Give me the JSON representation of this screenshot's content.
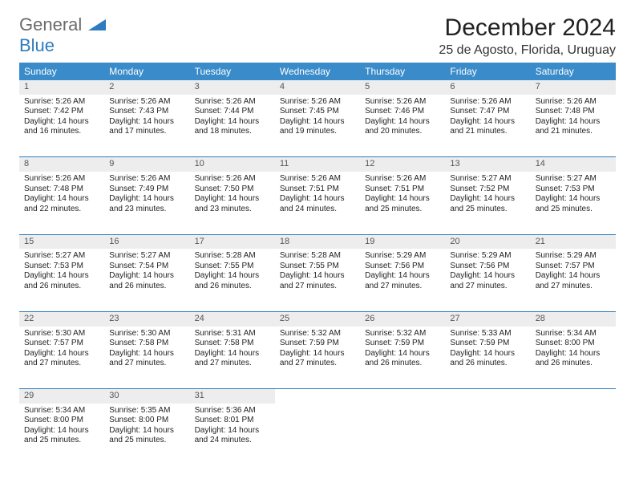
{
  "logo": {
    "line1": "General",
    "line2": "Blue"
  },
  "title": "December 2024",
  "location": "25 de Agosto, Florida, Uruguay",
  "colors": {
    "header_bg": "#3a8bc9",
    "header_text": "#ffffff",
    "daynum_bg": "#ededed",
    "daynum_border": "#2f7bbf",
    "body_text": "#222222",
    "logo_gray": "#6b6b6b",
    "logo_blue": "#2f7bbf"
  },
  "weekdays": [
    "Sunday",
    "Monday",
    "Tuesday",
    "Wednesday",
    "Thursday",
    "Friday",
    "Saturday"
  ],
  "weeks": [
    [
      {
        "n": "1",
        "sr": "5:26 AM",
        "ss": "7:42 PM",
        "dl": "14 hours and 16 minutes."
      },
      {
        "n": "2",
        "sr": "5:26 AM",
        "ss": "7:43 PM",
        "dl": "14 hours and 17 minutes."
      },
      {
        "n": "3",
        "sr": "5:26 AM",
        "ss": "7:44 PM",
        "dl": "14 hours and 18 minutes."
      },
      {
        "n": "4",
        "sr": "5:26 AM",
        "ss": "7:45 PM",
        "dl": "14 hours and 19 minutes."
      },
      {
        "n": "5",
        "sr": "5:26 AM",
        "ss": "7:46 PM",
        "dl": "14 hours and 20 minutes."
      },
      {
        "n": "6",
        "sr": "5:26 AM",
        "ss": "7:47 PM",
        "dl": "14 hours and 21 minutes."
      },
      {
        "n": "7",
        "sr": "5:26 AM",
        "ss": "7:48 PM",
        "dl": "14 hours and 21 minutes."
      }
    ],
    [
      {
        "n": "8",
        "sr": "5:26 AM",
        "ss": "7:48 PM",
        "dl": "14 hours and 22 minutes."
      },
      {
        "n": "9",
        "sr": "5:26 AM",
        "ss": "7:49 PM",
        "dl": "14 hours and 23 minutes."
      },
      {
        "n": "10",
        "sr": "5:26 AM",
        "ss": "7:50 PM",
        "dl": "14 hours and 23 minutes."
      },
      {
        "n": "11",
        "sr": "5:26 AM",
        "ss": "7:51 PM",
        "dl": "14 hours and 24 minutes."
      },
      {
        "n": "12",
        "sr": "5:26 AM",
        "ss": "7:51 PM",
        "dl": "14 hours and 25 minutes."
      },
      {
        "n": "13",
        "sr": "5:27 AM",
        "ss": "7:52 PM",
        "dl": "14 hours and 25 minutes."
      },
      {
        "n": "14",
        "sr": "5:27 AM",
        "ss": "7:53 PM",
        "dl": "14 hours and 25 minutes."
      }
    ],
    [
      {
        "n": "15",
        "sr": "5:27 AM",
        "ss": "7:53 PM",
        "dl": "14 hours and 26 minutes."
      },
      {
        "n": "16",
        "sr": "5:27 AM",
        "ss": "7:54 PM",
        "dl": "14 hours and 26 minutes."
      },
      {
        "n": "17",
        "sr": "5:28 AM",
        "ss": "7:55 PM",
        "dl": "14 hours and 26 minutes."
      },
      {
        "n": "18",
        "sr": "5:28 AM",
        "ss": "7:55 PM",
        "dl": "14 hours and 27 minutes."
      },
      {
        "n": "19",
        "sr": "5:29 AM",
        "ss": "7:56 PM",
        "dl": "14 hours and 27 minutes."
      },
      {
        "n": "20",
        "sr": "5:29 AM",
        "ss": "7:56 PM",
        "dl": "14 hours and 27 minutes."
      },
      {
        "n": "21",
        "sr": "5:29 AM",
        "ss": "7:57 PM",
        "dl": "14 hours and 27 minutes."
      }
    ],
    [
      {
        "n": "22",
        "sr": "5:30 AM",
        "ss": "7:57 PM",
        "dl": "14 hours and 27 minutes."
      },
      {
        "n": "23",
        "sr": "5:30 AM",
        "ss": "7:58 PM",
        "dl": "14 hours and 27 minutes."
      },
      {
        "n": "24",
        "sr": "5:31 AM",
        "ss": "7:58 PM",
        "dl": "14 hours and 27 minutes."
      },
      {
        "n": "25",
        "sr": "5:32 AM",
        "ss": "7:59 PM",
        "dl": "14 hours and 27 minutes."
      },
      {
        "n": "26",
        "sr": "5:32 AM",
        "ss": "7:59 PM",
        "dl": "14 hours and 26 minutes."
      },
      {
        "n": "27",
        "sr": "5:33 AM",
        "ss": "7:59 PM",
        "dl": "14 hours and 26 minutes."
      },
      {
        "n": "28",
        "sr": "5:34 AM",
        "ss": "8:00 PM",
        "dl": "14 hours and 26 minutes."
      }
    ],
    [
      {
        "n": "29",
        "sr": "5:34 AM",
        "ss": "8:00 PM",
        "dl": "14 hours and 25 minutes."
      },
      {
        "n": "30",
        "sr": "5:35 AM",
        "ss": "8:00 PM",
        "dl": "14 hours and 25 minutes."
      },
      {
        "n": "31",
        "sr": "5:36 AM",
        "ss": "8:01 PM",
        "dl": "14 hours and 24 minutes."
      },
      null,
      null,
      null,
      null
    ]
  ],
  "labels": {
    "sunrise": "Sunrise:",
    "sunset": "Sunset:",
    "daylight": "Daylight:"
  }
}
